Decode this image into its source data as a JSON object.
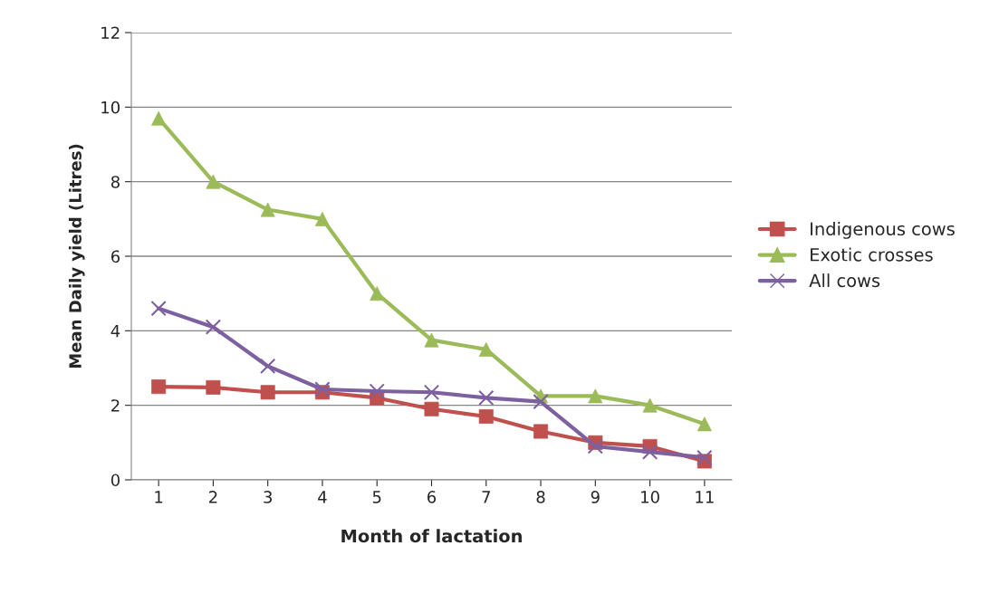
{
  "chart_data": {
    "type": "line",
    "xlabel": "Month of lactation",
    "ylabel": "Mean Daily yield (Litres)",
    "categories": [
      "1",
      "2",
      "3",
      "4",
      "5",
      "6",
      "7",
      "8",
      "9",
      "10",
      "11"
    ],
    "series": [
      {
        "name": "Indigenous cows",
        "color": "#c0504d",
        "marker": "square",
        "values": [
          2.5,
          2.48,
          2.35,
          2.35,
          2.2,
          1.9,
          1.7,
          1.3,
          1.0,
          0.9,
          0.5
        ]
      },
      {
        "name": "Exotic crosses",
        "color": "#9bbb59",
        "marker": "triangle",
        "values": [
          9.7,
          8.0,
          7.25,
          7.0,
          5.0,
          3.75,
          3.5,
          2.25,
          2.25,
          2.0,
          1.5
        ]
      },
      {
        "name": "All cows",
        "color": "#7d60a0",
        "marker": "cross",
        "values": [
          4.6,
          4.1,
          3.05,
          2.43,
          2.38,
          2.35,
          2.2,
          2.1,
          0.9,
          0.75,
          0.6
        ]
      }
    ],
    "ylim": [
      0,
      12
    ],
    "yticks": [
      0,
      2,
      4,
      6,
      8,
      10,
      12
    ],
    "grid": "y",
    "legend": "right",
    "line_style": "solid"
  }
}
